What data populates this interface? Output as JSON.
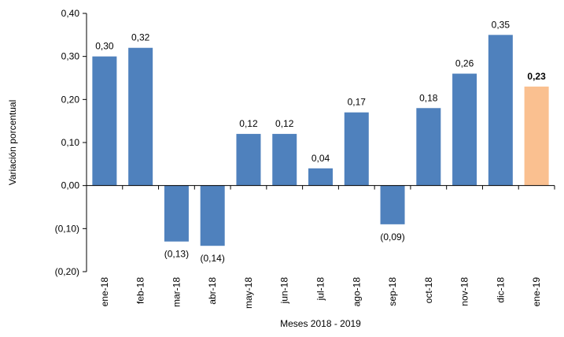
{
  "chart_data": {
    "type": "bar",
    "categories": [
      "ene-18",
      "feb-18",
      "mar-18",
      "abr-18",
      "may-18",
      "jun-18",
      "jul-18",
      "ago-18",
      "sep-18",
      "oct-18",
      "nov-18",
      "dic-18",
      "ene-19"
    ],
    "values": [
      0.3,
      0.32,
      -0.13,
      -0.14,
      0.12,
      0.12,
      0.04,
      0.17,
      -0.09,
      0.18,
      0.26,
      0.35,
      0.23
    ],
    "value_labels": [
      "0,30",
      "0,32",
      "(0,13)",
      "(0,14)",
      "0,12",
      "0,12",
      "0,04",
      "0,17",
      "(0,09)",
      "0,18",
      "0,26",
      "0,35",
      "0,23"
    ],
    "highlight_index": 12,
    "xlabel": "Meses 2018 - 2019",
    "ylabel": "Variación porcentual",
    "ylim": [
      -0.2,
      0.4
    ],
    "yticks": [
      0.4,
      0.3,
      0.2,
      0.1,
      0.0,
      -0.1,
      -0.2
    ],
    "ytick_labels": [
      "0,40",
      "0,30",
      "0,20",
      "0,10",
      "0,00",
      "(0,10)",
      "(0,20)"
    ],
    "grid": false,
    "legend": "none",
    "colors": {
      "bar": "#4f81bd",
      "highlight": "#fac090",
      "axis": "#000000"
    }
  }
}
